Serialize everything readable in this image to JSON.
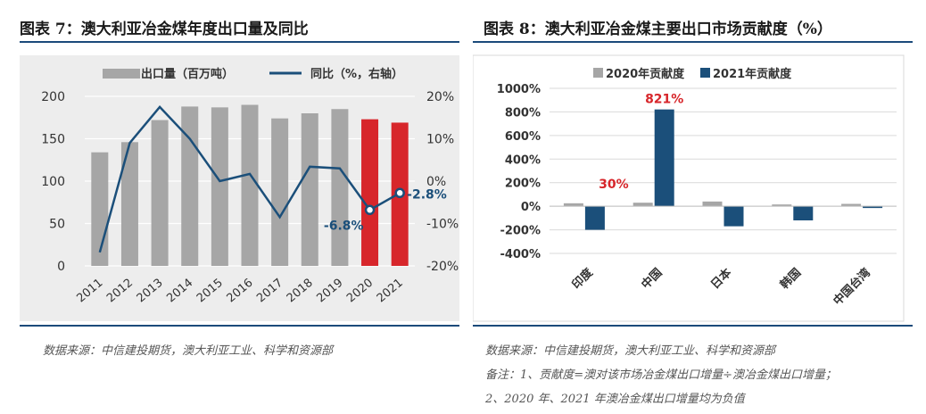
{
  "left": {
    "title": "图表 7：澳大利亚冶金煤年度出口量及同比",
    "source": "数据来源：中信建投期货，澳大利亚工业、科学和资源部",
    "chart_data": {
      "type": "bar",
      "categories": [
        "2011",
        "2012",
        "2013",
        "2014",
        "2015",
        "2016",
        "2017",
        "2018",
        "2019",
        "2020",
        "2021"
      ],
      "series": [
        {
          "name": "出口量（百万吨）",
          "type": "bar",
          "axis": "left",
          "values": [
            134,
            146,
            172,
            188,
            187,
            190,
            174,
            180,
            185,
            173,
            169
          ],
          "colors": [
            "#a6a6a6",
            "#a6a6a6",
            "#a6a6a6",
            "#a6a6a6",
            "#a6a6a6",
            "#a6a6a6",
            "#a6a6a6",
            "#a6a6a6",
            "#a6a6a6",
            "#d7262b",
            "#d7262b"
          ]
        },
        {
          "name": "同比（%，右轴）",
          "type": "line",
          "axis": "right",
          "color": "#1b4f7a",
          "values": [
            -16.8,
            9.0,
            17.5,
            10.0,
            0.0,
            1.7,
            -8.5,
            3.4,
            3.0,
            -6.8,
            -2.8
          ]
        }
      ],
      "ylim": [
        0,
        200
      ],
      "yticks": [
        "0",
        "50",
        "100",
        "150",
        "200"
      ],
      "y2lim": [
        -20,
        20
      ],
      "y2ticks": [
        "-20%",
        "-10%",
        "0%",
        "10%",
        "20%"
      ],
      "data_labels": [
        {
          "index": 9,
          "text": "-6.8%"
        },
        {
          "index": 10,
          "text": "-2.8%"
        }
      ],
      "legend_position": "top"
    }
  },
  "right": {
    "title": "图表 8：澳大利亚冶金煤主要出口市场贡献度（%）",
    "source": "数据来源：中信建投期货，澳大利亚工业、科学和资源部",
    "note_line1": "备注：1、贡献度=澳对该市场冶金煤出口增量÷澳冶金煤出口增量；",
    "note_line2": "2、2020 年、2021 年澳冶金煤出口增量均为负值",
    "chart_data": {
      "type": "bar",
      "categories": [
        "印度",
        "中国",
        "日本",
        "韩国",
        "中国台湾"
      ],
      "series": [
        {
          "name": "2020年贡献度",
          "color": "#a6a6a6",
          "values": [
            25,
            30,
            40,
            15,
            20
          ]
        },
        {
          "name": "2021年贡献度",
          "color": "#1b4f7a",
          "values": [
            -200,
            821,
            -170,
            -120,
            -15
          ]
        }
      ],
      "ylim": [
        -400,
        1000
      ],
      "yticks": [
        "-400%",
        "-200%",
        "0%",
        "200%",
        "400%",
        "600%",
        "800%",
        "1000%"
      ],
      "data_labels": [
        {
          "category": "中国",
          "series": "2020年贡献度",
          "text": "30%"
        },
        {
          "category": "中国",
          "series": "2021年贡献度",
          "text": "821%"
        }
      ],
      "legend_position": "top"
    }
  }
}
